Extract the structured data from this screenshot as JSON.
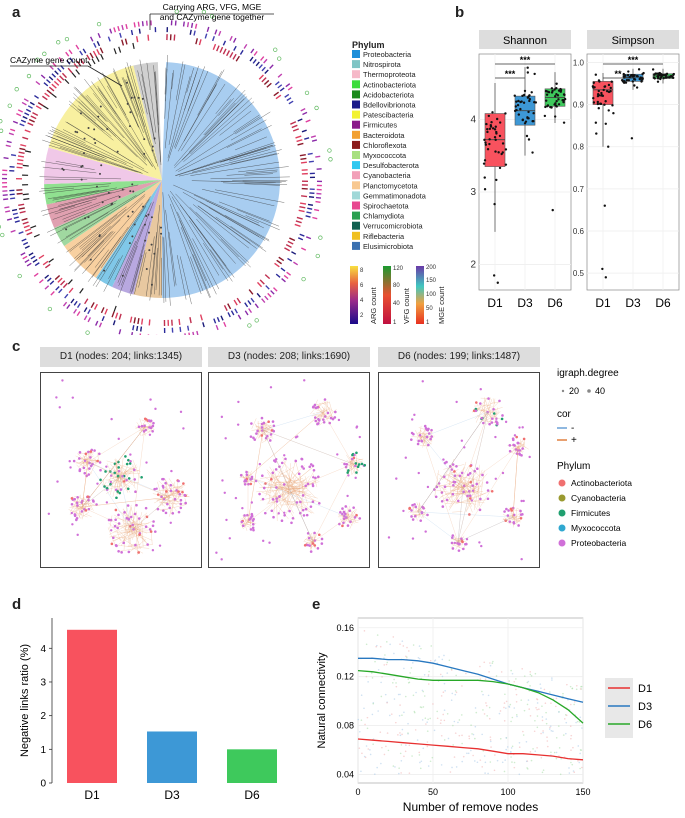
{
  "panels": {
    "a": "a",
    "b": "b",
    "c": "c",
    "d": "d",
    "e": "e"
  },
  "panel_a": {
    "annot_top": [
      "Carrying ARG, VFG, MGE",
      "and CAZyme gene together"
    ],
    "annot_left": "CAZyme gene count",
    "legend_title": "Phylum",
    "phyla": [
      {
        "name": "Proteobacteria",
        "color": "#1f8fd9"
      },
      {
        "name": "Nitrospirota",
        "color": "#7fc5c5"
      },
      {
        "name": "Thermoproteota",
        "color": "#f6b8c8"
      },
      {
        "name": "Actinobacteriota",
        "color": "#3ddc3d"
      },
      {
        "name": "Acidobacteriota",
        "color": "#1a8a1a"
      },
      {
        "name": "Bdellovibrionota",
        "color": "#1a1a8a"
      },
      {
        "name": "Patescibacteria",
        "color": "#f2f230"
      },
      {
        "name": "Firmicutes",
        "color": "#8a1a8a"
      },
      {
        "name": "Bacteroidota",
        "color": "#f2a030"
      },
      {
        "name": "Chloroflexota",
        "color": "#8a1a1a"
      },
      {
        "name": "Myxococcota",
        "color": "#a8e080"
      },
      {
        "name": "Desulfobacterota",
        "color": "#30c8f0"
      },
      {
        "name": "Cyanobacteria",
        "color": "#f2a0b8"
      },
      {
        "name": "Planctomycetota",
        "color": "#f8c890"
      },
      {
        "name": "Gemmatimonadota",
        "color": "#a0d8d8"
      },
      {
        "name": "Spirochaetota",
        "color": "#e84890"
      },
      {
        "name": "Chlamydiota",
        "color": "#2aa050"
      },
      {
        "name": "Verrucomicrobiota",
        "color": "#106050"
      },
      {
        "name": "Riflebacteria",
        "color": "#f0c020"
      },
      {
        "name": "Elusimicrobiota",
        "color": "#3a70b0"
      }
    ],
    "colorbars": [
      {
        "label": "ARG count",
        "ticks": [
          "8",
          "6",
          "4",
          "2"
        ]
      },
      {
        "label": "VFG count",
        "ticks": [
          "120",
          "80",
          "40",
          "1"
        ]
      },
      {
        "label": "MGE count",
        "ticks": [
          "200",
          "150",
          "100",
          "50",
          "1"
        ]
      }
    ]
  },
  "panel_c": {
    "networks": [
      {
        "title": "D1 (nodes: 204; links:1345)"
      },
      {
        "title": "D3 (nodes: 208; links:1690)"
      },
      {
        "title": "D6 (nodes: 199; links:1487)"
      }
    ],
    "legend_degree_title": "igraph.degree",
    "legend_degree_items": [
      "20",
      "40"
    ],
    "legend_cor_title": "cor",
    "legend_cor_items": [
      "-",
      "+"
    ],
    "legend_cor_colors": [
      "#8fb8e0",
      "#e8a070"
    ],
    "legend_phylum_title": "Phylum",
    "legend_phylum_items": [
      {
        "name": "Actinobacteriota",
        "color": "#f07070"
      },
      {
        "name": "Cyanobacteria",
        "color": "#9a9a30"
      },
      {
        "name": "Firmicutes",
        "color": "#20a070"
      },
      {
        "name": "Myxococcota",
        "color": "#30a8d0"
      },
      {
        "name": "Proteobacteria",
        "color": "#d070d8"
      }
    ]
  },
  "chart_data": [
    {
      "type": "boxplot",
      "facet": "Shannon",
      "categories": [
        "D1",
        "D3",
        "D6"
      ],
      "colors": [
        "#f8525e",
        "#3d98d6",
        "#3ec95c"
      ],
      "boxes": [
        {
          "q1": 3.35,
          "median": 3.72,
          "q3": 4.08,
          "wlo": 2.45,
          "whi": 4.5
        },
        {
          "q1": 3.92,
          "median": 4.12,
          "q3": 4.32,
          "wlo": 3.5,
          "whi": 4.72
        },
        {
          "q1": 4.18,
          "median": 4.3,
          "q3": 4.42,
          "wlo": 3.95,
          "whi": 4.65
        }
      ],
      "ylim": [
        1.65,
        4.9
      ],
      "yticks": [
        2,
        3,
        4
      ],
      "sig": [
        {
          "from": "D1",
          "to": "D6",
          "label": "***"
        },
        {
          "from": "D1",
          "to": "D3",
          "label": "***"
        }
      ]
    },
    {
      "type": "boxplot",
      "facet": "Simpson",
      "categories": [
        "D1",
        "D3",
        "D6"
      ],
      "colors": [
        "#f8525e",
        "#3d98d6",
        "#3ec95c"
      ],
      "boxes": [
        {
          "q1": 0.9,
          "median": 0.935,
          "q3": 0.955,
          "wlo": 0.8,
          "whi": 0.975
        },
        {
          "q1": 0.955,
          "median": 0.965,
          "q3": 0.972,
          "wlo": 0.935,
          "whi": 0.985
        },
        {
          "q1": 0.962,
          "median": 0.968,
          "q3": 0.973,
          "wlo": 0.95,
          "whi": 0.985
        }
      ],
      "ylim": [
        0.46,
        1.02
      ],
      "yticks": [
        0.5,
        0.6,
        0.7,
        0.8,
        0.9,
        1.0
      ],
      "yticklabels": [
        "0.5",
        "0.6",
        "0.7",
        "0.8",
        "0.9",
        "1.0"
      ],
      "sig": [
        {
          "from": "D1",
          "to": "D6",
          "label": "***"
        },
        {
          "from": "D1",
          "to": "D3",
          "label": "**"
        }
      ]
    },
    {
      "type": "bar",
      "categories": [
        "D1",
        "D3",
        "D6"
      ],
      "values": [
        4.55,
        1.53,
        1.0
      ],
      "colors": [
        "#f8525e",
        "#3d98d6",
        "#3ec95c"
      ],
      "ylabel": "Negative links ratio (%)",
      "ylim": [
        0,
        4.9
      ],
      "yticks": [
        0,
        1,
        2,
        3,
        4
      ]
    },
    {
      "type": "line",
      "xlabel": "Number of remove nodes",
      "ylabel": "Natural connectivity",
      "xlim": [
        0,
        150
      ],
      "ylim": [
        0.033,
        0.168
      ],
      "xticks": [
        0,
        50,
        100,
        150
      ],
      "yticks": [
        0.04,
        0.08,
        0.12,
        0.16
      ],
      "yticklabels": [
        "0.04",
        "0.08",
        "0.12",
        "0.16"
      ],
      "x": [
        0,
        10,
        20,
        30,
        40,
        50,
        60,
        70,
        80,
        90,
        100,
        110,
        120,
        130,
        140,
        150
      ],
      "series": [
        {
          "name": "D1",
          "color": "#e83030",
          "values": [
            0.069,
            0.068,
            0.067,
            0.066,
            0.065,
            0.064,
            0.063,
            0.062,
            0.061,
            0.059,
            0.057,
            0.057,
            0.056,
            0.055,
            0.053,
            0.052
          ]
        },
        {
          "name": "D3",
          "color": "#2878c0",
          "values": [
            0.135,
            0.135,
            0.134,
            0.134,
            0.133,
            0.131,
            0.128,
            0.125,
            0.122,
            0.118,
            0.114,
            0.111,
            0.108,
            0.105,
            0.102,
            0.099
          ]
        },
        {
          "name": "D6",
          "color": "#28a828",
          "values": [
            0.125,
            0.124,
            0.122,
            0.12,
            0.118,
            0.117,
            0.117,
            0.117,
            0.117,
            0.116,
            0.114,
            0.111,
            0.107,
            0.101,
            0.093,
            0.082
          ]
        }
      ]
    }
  ]
}
